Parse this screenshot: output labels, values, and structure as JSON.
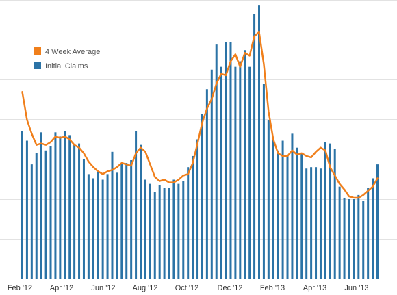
{
  "chart_data": {
    "type": "bar",
    "title": "",
    "xlabel": "",
    "ylabel": "",
    "x_tick_labels": [
      "Feb '12",
      "Apr '12",
      "Jun '12",
      "Aug '12",
      "Oct '12",
      "Dec '12",
      "Feb '13",
      "Apr '13",
      "Jun '13"
    ],
    "y_scale": "index (relative level, not labeled)",
    "ylim": [
      0,
      100
    ],
    "grid": "horizontal",
    "legend": {
      "placement": "top-left",
      "entries": [
        {
          "label": "4 Week Average",
          "color": "#f07f1b",
          "kind": "line"
        },
        {
          "label": "Initial Claims",
          "color": "#2b73a6",
          "kind": "bar"
        }
      ]
    },
    "series": [
      {
        "name": "Initial Claims",
        "kind": "bar",
        "color": "#2b73a6",
        "values": [
          53,
          49.5,
          41,
          45,
          52.5,
          46,
          47.5,
          52.5,
          51,
          53,
          51.5,
          48,
          48.5,
          43,
          37.5,
          36,
          38.5,
          35.5,
          37.5,
          45.5,
          38,
          41.5,
          41.5,
          42.5,
          53,
          48,
          35.5,
          34,
          31,
          33.5,
          32.5,
          32.5,
          35.5,
          34,
          35,
          40,
          44,
          50,
          59,
          68,
          75,
          84,
          76,
          85,
          85,
          76,
          78,
          82,
          76,
          95,
          98,
          70,
          57,
          50,
          46,
          49.5,
          44,
          52,
          47,
          45,
          39.5,
          40,
          40,
          39.5,
          49,
          48.5,
          46.5,
          33,
          29,
          28.5,
          28.5,
          30,
          28,
          32.5,
          36,
          41
        ]
      },
      {
        "name": "4 Week Average",
        "kind": "line",
        "color": "#f07f1b",
        "values": [
          67,
          57,
          52,
          48,
          48.5,
          48,
          49,
          51,
          50.5,
          51,
          50,
          48,
          47,
          45,
          42,
          40,
          38.5,
          37.5,
          38.5,
          39,
          40,
          41.5,
          41,
          40.5,
          45,
          47,
          45.5,
          41,
          36.5,
          35,
          35.5,
          34.5,
          34.5,
          35.5,
          37,
          37.5,
          41.5,
          48.5,
          56,
          61,
          64.5,
          70,
          73.5,
          73,
          78,
          80.5,
          76,
          81,
          80,
          87,
          88.5,
          77,
          60,
          50,
          45,
          44,
          44,
          46,
          44.5,
          45,
          44,
          43.5,
          45.5,
          47,
          46,
          40,
          37,
          34,
          32,
          29.5,
          29,
          29,
          30,
          31.5,
          33,
          36
        ]
      }
    ]
  }
}
